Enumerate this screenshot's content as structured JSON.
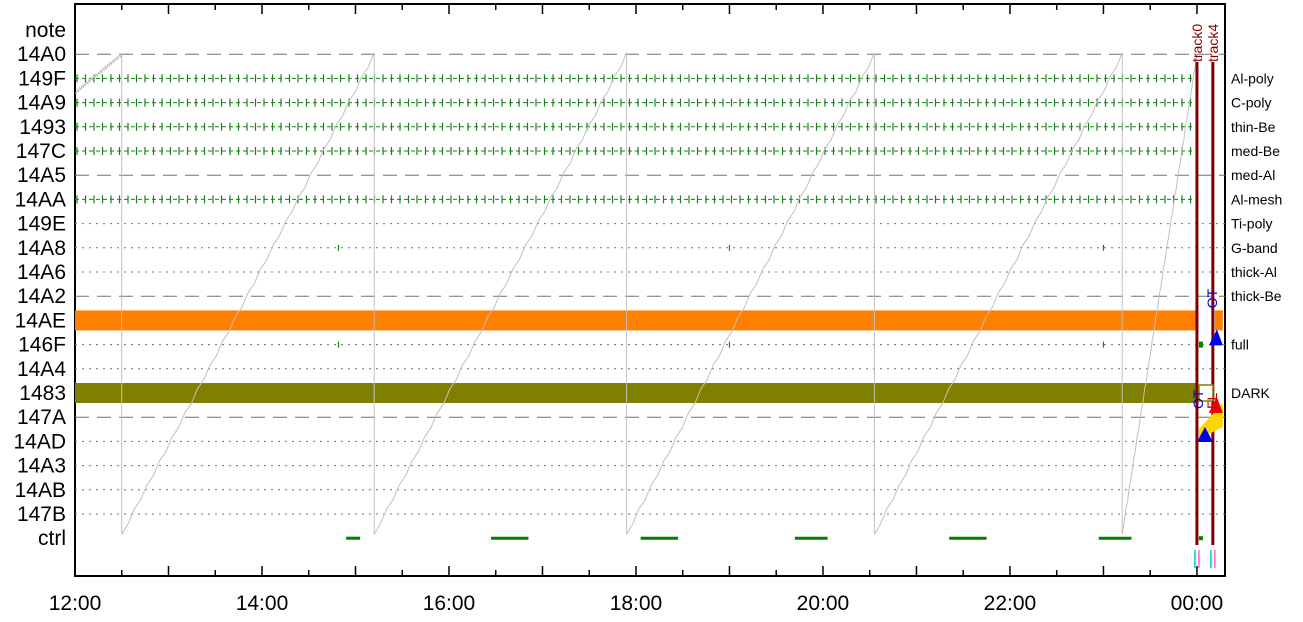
{
  "chart_data": {
    "type": "timeline",
    "title": "",
    "xlabel": "",
    "ylabel": "",
    "x_ticks": [
      "12:00",
      "14:00",
      "16:00",
      "18:00",
      "20:00",
      "22:00",
      "00:00"
    ],
    "x_range_hours": [
      12.0,
      24.3
    ],
    "rows": [
      {
        "code": "note",
        "label": ""
      },
      {
        "code": "14A0",
        "label": "",
        "style": "dashed"
      },
      {
        "code": "149F",
        "label": "Al-poly",
        "style": "ticks"
      },
      {
        "code": "14A9",
        "label": "C-poly",
        "style": "ticks"
      },
      {
        "code": "1493",
        "label": "thin-Be",
        "style": "ticks"
      },
      {
        "code": "147C",
        "label": "med-Be",
        "style": "ticks"
      },
      {
        "code": "14A5",
        "label": "med-Al",
        "style": "dashed"
      },
      {
        "code": "14AA",
        "label": "Al-mesh",
        "style": "ticks"
      },
      {
        "code": "149E",
        "label": "Ti-poly",
        "style": "dotted"
      },
      {
        "code": "14A8",
        "label": "G-band",
        "style": "dotted"
      },
      {
        "code": "14A6",
        "label": "thick-Al",
        "style": "dotted"
      },
      {
        "code": "14A2",
        "label": "thick-Be",
        "style": "dashed"
      },
      {
        "code": "14AE",
        "label": "",
        "style": "bar",
        "color": "#ff8000"
      },
      {
        "code": "146F",
        "label": "full",
        "style": "dotted"
      },
      {
        "code": "14A4",
        "label": "",
        "style": "dotted"
      },
      {
        "code": "1483",
        "label": "DARK",
        "style": "bar",
        "color": "#808000"
      },
      {
        "code": "147A",
        "label": "",
        "style": "dashed"
      },
      {
        "code": "14AD",
        "label": "",
        "style": "dotted"
      },
      {
        "code": "14A3",
        "label": "",
        "style": "dotted"
      },
      {
        "code": "14AB",
        "label": "",
        "style": "dotted"
      },
      {
        "code": "147B",
        "label": "",
        "style": "dotted"
      },
      {
        "code": "ctrl",
        "label": ""
      }
    ],
    "sparse_marks": {
      "rows": [
        "14A8",
        "146F"
      ],
      "times": [
        15.0,
        19.0,
        23.0
      ]
    },
    "ctrl_segments": [
      [
        14.9,
        15.05
      ],
      [
        16.45,
        16.85
      ],
      [
        18.05,
        18.45
      ],
      [
        19.7,
        20.05
      ],
      [
        21.35,
        21.75
      ],
      [
        22.95,
        23.3
      ]
    ],
    "sawtooth": {
      "resets": [
        12.5,
        15.2,
        17.9,
        20.55,
        23.2
      ],
      "start": 24.0
    },
    "tracks": [
      {
        "name": "track0",
        "time": 24.0,
        "color": "#800000"
      },
      {
        "name": "track4",
        "time": 24.17,
        "color": "#800000"
      }
    ],
    "annotations": [
      {
        "text": "OT",
        "row": "14A2",
        "time": 24.15,
        "color": "#0000cc"
      },
      {
        "text": "OT",
        "row": "1483",
        "time": 24.0,
        "color": "#0000cc"
      },
      {
        "text": "FL",
        "row": "1483",
        "time": 24.15,
        "color": "#cc0000"
      }
    ],
    "colors": {
      "tick_rows": "#1a801a",
      "ctrl": "#008000",
      "sawtooth": "#c0c0c0",
      "tracks": "#800000",
      "orange_bar": "#ff8000",
      "olive_bar": "#808000"
    }
  }
}
